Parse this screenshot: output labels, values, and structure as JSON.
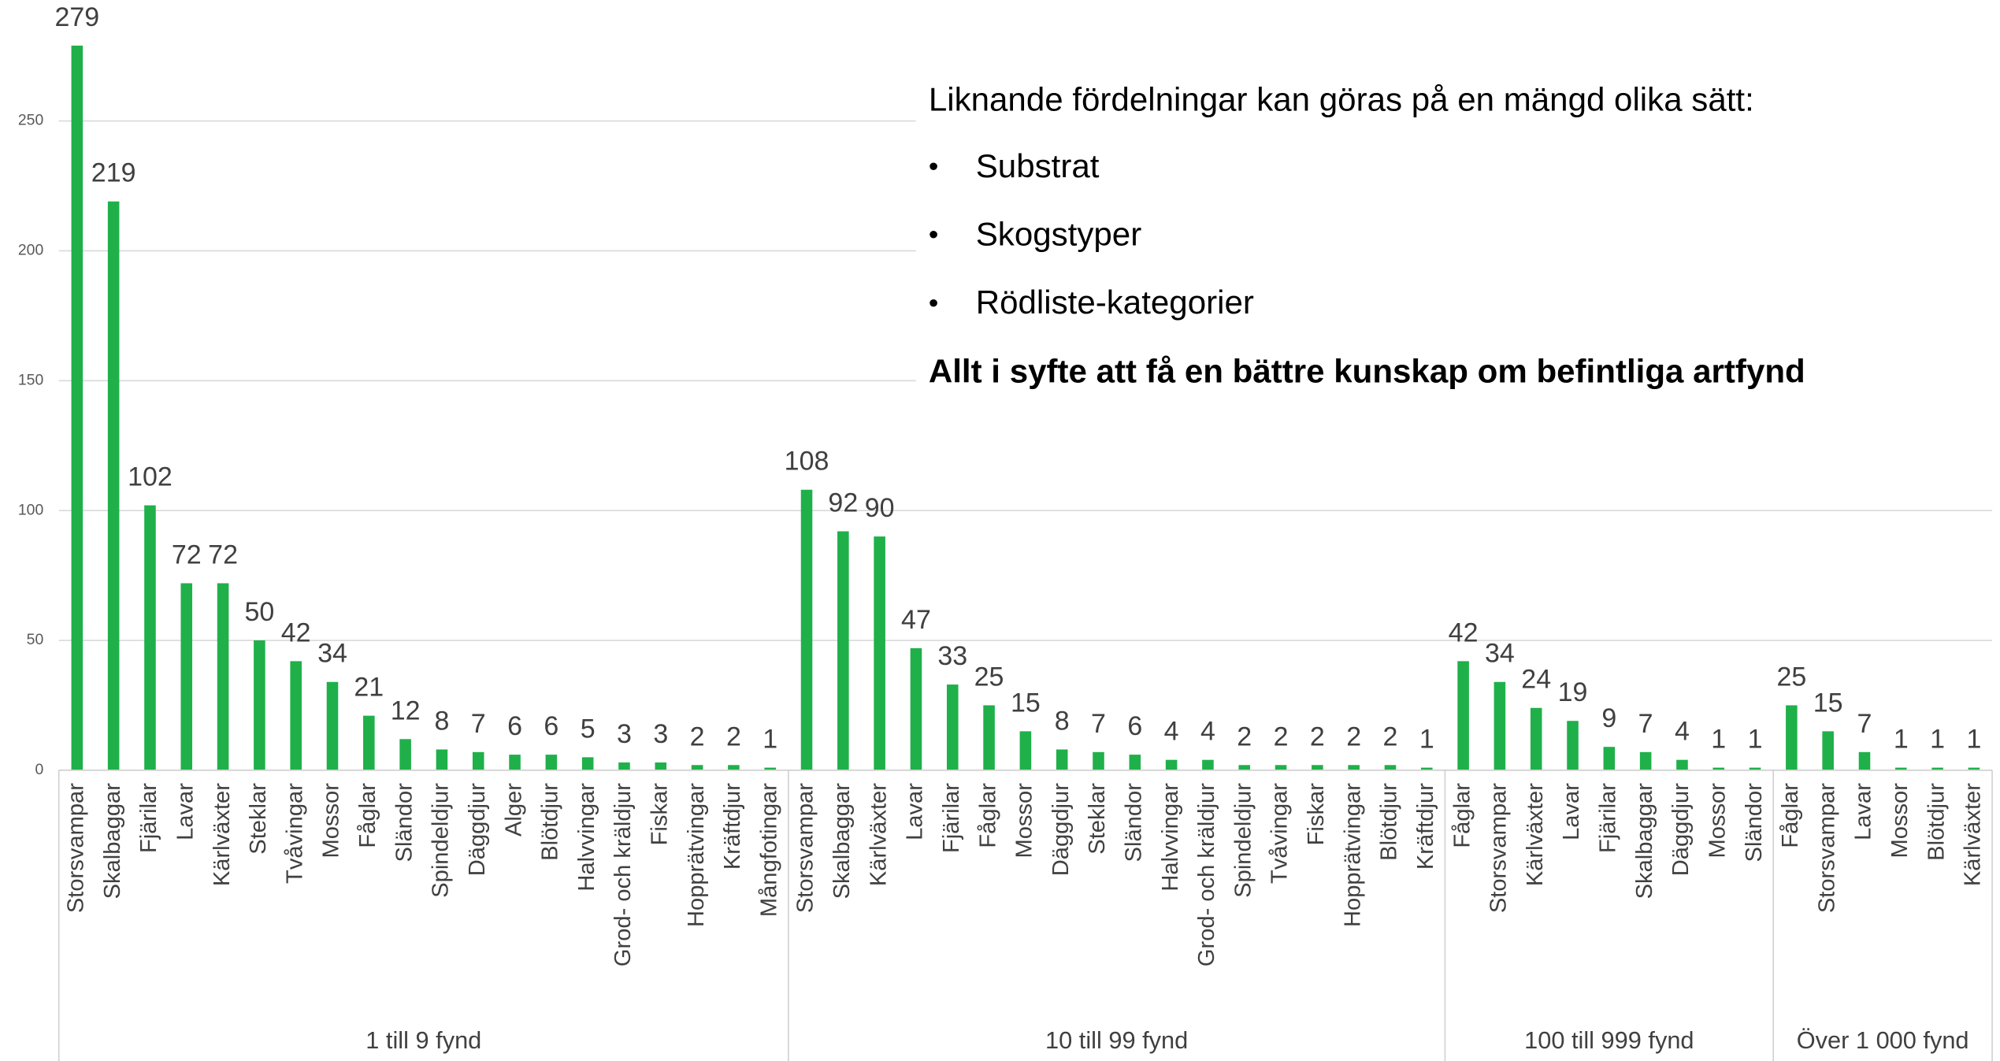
{
  "chart_data": {
    "type": "grouped_bar",
    "groups": [
      {
        "name": "1 till 9 fynd",
        "categories": [
          "Storsvampar",
          "Skalbaggar",
          "Fjärilar",
          "Lavar",
          "Kärlväxter",
          "Steklar",
          "Tvåvingar",
          "Mossor",
          "Fåglar",
          "Sländor",
          "Spindeldjur",
          "Däggdjur",
          "Alger",
          "Blötdjur",
          "Halvvingar",
          "Grod- och kräldjur",
          "Fiskar",
          "Hopprätvingar",
          "Kräftdjur",
          "Mångfotingar"
        ],
        "values": [
          279,
          219,
          102,
          72,
          72,
          50,
          42,
          34,
          21,
          12,
          8,
          7,
          6,
          6,
          5,
          3,
          3,
          2,
          2,
          1
        ]
      },
      {
        "name": "10 till 99 fynd",
        "categories": [
          "Storsvampar",
          "Skalbaggar",
          "Kärlväxter",
          "Lavar",
          "Fjärilar",
          "Fåglar",
          "Mossor",
          "Däggdjur",
          "Steklar",
          "Sländor",
          "Halvvingar",
          "Grod- och kräldjur",
          "Spindeldjur",
          "Tvåvingar",
          "Fiskar",
          "Hopprätvingar",
          "Blötdjur",
          "Kräftdjur"
        ],
        "values": [
          108,
          92,
          90,
          47,
          33,
          25,
          15,
          8,
          7,
          6,
          4,
          4,
          2,
          2,
          2,
          2,
          2,
          1
        ]
      },
      {
        "name": "100 till 999 fynd",
        "categories": [
          "Fåglar",
          "Storsvampar",
          "Kärlväxter",
          "Lavar",
          "Fjärilar",
          "Skalbaggar",
          "Däggdjur",
          "Mossor",
          "Sländor"
        ],
        "values": [
          42,
          34,
          24,
          19,
          9,
          7,
          4,
          1,
          1
        ]
      },
      {
        "name": "Över 1 000 fynd",
        "categories": [
          "Fåglar",
          "Storsvampar",
          "Lavar",
          "Mossor",
          "Blötdjur",
          "Kärlväxter"
        ],
        "values": [
          25,
          15,
          7,
          1,
          1,
          1
        ]
      }
    ],
    "color": "#1fb04a",
    "ylim": [
      0,
      300
    ],
    "yticks": [
      0,
      50,
      100,
      150,
      200,
      250
    ],
    "grid": true,
    "annotation": {
      "text": "Liknande fördelningar kan göras på en mängd olika sätt:",
      "bullets": [
        "Substrat",
        "Skogstyper",
        "Rödliste-kategorier"
      ],
      "conclusion": "Allt i syfte att få en bättre kunskap om befintliga artfynd"
    }
  }
}
